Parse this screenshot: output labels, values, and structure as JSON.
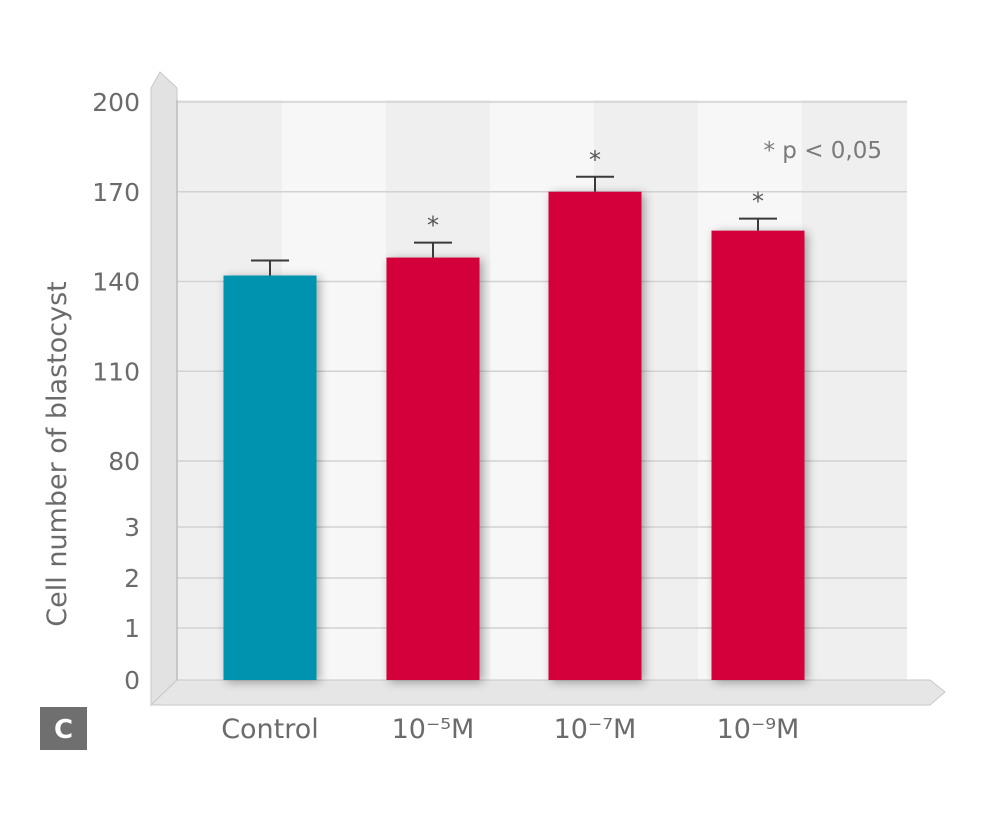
{
  "chart_data": {
    "type": "bar",
    "categories": [
      "Control",
      "10⁻⁵M",
      "10⁻⁷M",
      "10⁻⁹M"
    ],
    "values": [
      142,
      148,
      170,
      157
    ],
    "errors": [
      5,
      5,
      5,
      4
    ],
    "significant": [
      false,
      true,
      true,
      true
    ],
    "significance_marker": "*",
    "colors": [
      "#0093b0",
      "#d3063a",
      "#d3063a",
      "#d3063a"
    ],
    "ylabel": "Cell number of blastocyst",
    "xlabel": "",
    "y_ticks": [
      "0",
      "1",
      "2",
      "3",
      "80",
      "110",
      "140",
      "170",
      "200"
    ],
    "y_scale": "broken: 0–3 linear, break, 80–200 linear",
    "grid": true,
    "annotation": "* p < 0,05",
    "panel_label": "C"
  }
}
